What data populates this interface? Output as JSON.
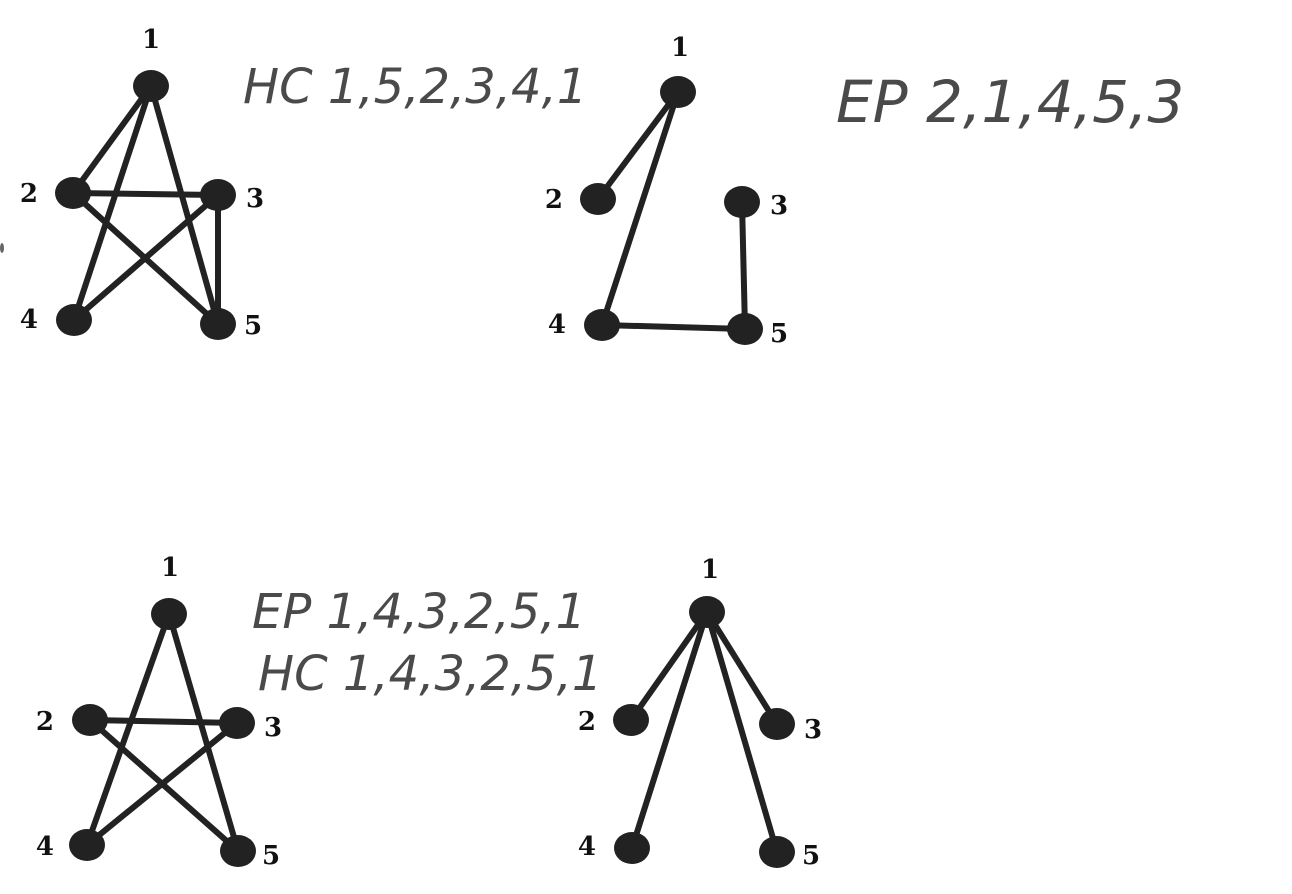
{
  "graphs": [
    {
      "id": "top-left",
      "nodes": [
        {
          "id": "1",
          "label": "1"
        },
        {
          "id": "2",
          "label": "2"
        },
        {
          "id": "3",
          "label": "3"
        },
        {
          "id": "4",
          "label": "4"
        },
        {
          "id": "5",
          "label": "5"
        }
      ],
      "edges": [
        [
          "1",
          "2"
        ],
        [
          "1",
          "4"
        ],
        [
          "1",
          "5"
        ],
        [
          "2",
          "3"
        ],
        [
          "2",
          "5"
        ],
        [
          "3",
          "4"
        ],
        [
          "3",
          "5"
        ]
      ],
      "annotations": [
        "HC 1,5,2,3,4,1"
      ]
    },
    {
      "id": "top-right",
      "nodes": [
        {
          "id": "1",
          "label": "1"
        },
        {
          "id": "2",
          "label": "2"
        },
        {
          "id": "3",
          "label": "3"
        },
        {
          "id": "4",
          "label": "4"
        },
        {
          "id": "5",
          "label": "5"
        }
      ],
      "edges": [
        [
          "1",
          "2"
        ],
        [
          "1",
          "4"
        ],
        [
          "4",
          "5"
        ],
        [
          "3",
          "5"
        ]
      ],
      "annotations": [
        "EP 2,1,4,5,3"
      ]
    },
    {
      "id": "bottom-left",
      "nodes": [
        {
          "id": "1",
          "label": "1"
        },
        {
          "id": "2",
          "label": "2"
        },
        {
          "id": "3",
          "label": "3"
        },
        {
          "id": "4",
          "label": "4"
        },
        {
          "id": "5",
          "label": "5"
        }
      ],
      "edges": [
        [
          "1",
          "4"
        ],
        [
          "1",
          "5"
        ],
        [
          "2",
          "3"
        ],
        [
          "2",
          "5"
        ],
        [
          "3",
          "4"
        ]
      ],
      "annotations": [
        "EP 1,4,3,2,5,1",
        "HC 1,4,3,2,5,1"
      ]
    },
    {
      "id": "bottom-right",
      "nodes": [
        {
          "id": "1",
          "label": "1"
        },
        {
          "id": "2",
          "label": "2"
        },
        {
          "id": "3",
          "label": "3"
        },
        {
          "id": "4",
          "label": "4"
        },
        {
          "id": "5",
          "label": "5"
        }
      ],
      "edges": [
        [
          "1",
          "2"
        ],
        [
          "1",
          "3"
        ],
        [
          "1",
          "4"
        ],
        [
          "1",
          "5"
        ]
      ],
      "annotations": []
    }
  ]
}
